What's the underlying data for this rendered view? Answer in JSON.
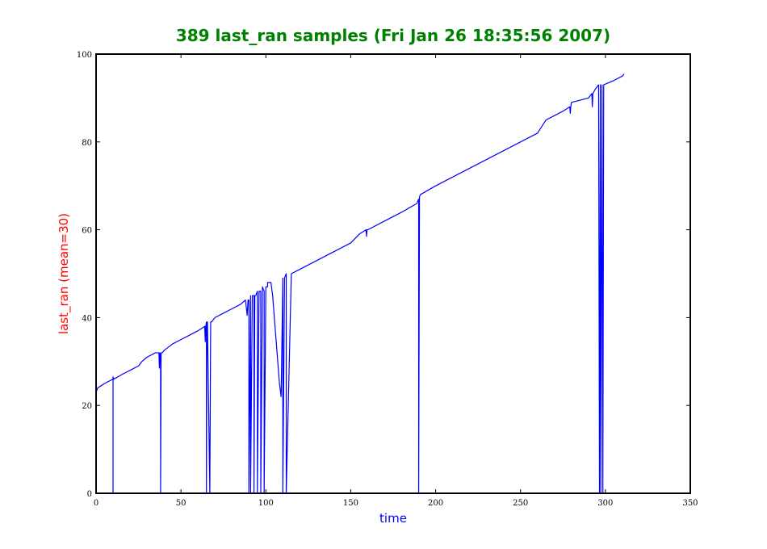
{
  "chart_data": {
    "type": "line",
    "title": "389 last_ran samples (Fri Jan 26 18:35:56 2007)",
    "xlabel": "time",
    "ylabel": "last_ran (mean=30)",
    "xlim": [
      0,
      350
    ],
    "ylim": [
      0,
      100
    ],
    "xticks": [
      0,
      50,
      100,
      150,
      200,
      250,
      300,
      350
    ],
    "yticks": [
      0,
      20,
      40,
      60,
      80,
      100
    ],
    "grid": false,
    "legend": "none",
    "colors": {
      "title": "#008000",
      "xlabel": "#0000ff",
      "ylabel": "#ff0000",
      "series": "#0000ff",
      "frame": "#000000"
    },
    "series": [
      {
        "x": [
          0,
          1,
          5,
          10,
          10,
          10,
          10.5,
          15,
          20,
          25,
          27,
          30,
          35,
          37,
          37.3,
          37.6,
          38,
          38,
          38.3,
          38.6,
          39,
          40,
          45,
          50,
          55,
          60,
          64,
          64.3,
          64.6,
          65,
          65,
          65.3,
          65.6,
          67,
          67.5,
          68,
          70,
          75,
          80,
          85,
          88,
          89,
          89.5,
          90,
          90,
          91,
          91,
          92,
          93,
          93,
          93.5,
          94,
          95,
          95,
          96,
          97,
          97,
          98,
          99,
          99,
          100,
          101,
          101,
          102,
          103,
          104,
          105,
          106,
          107,
          108,
          109,
          110,
          110,
          111,
          112,
          112,
          115,
          120,
          130,
          140,
          150,
          155,
          159,
          159.3,
          159.6,
          160,
          170,
          180,
          189,
          190,
          190,
          190.5,
          191,
          200,
          220,
          240,
          260,
          265,
          270,
          275,
          279,
          279.3,
          279.6,
          280,
          290,
          292,
          292.3,
          292.6,
          294,
          296,
          296.5,
          297,
          297,
          297.3,
          298,
          298,
          298.5,
          299,
          305,
          310,
          311
        ],
        "y": [
          23,
          24,
          25,
          26,
          0,
          26.5,
          26,
          27,
          28,
          29,
          30,
          31,
          32,
          32,
          28.5,
          32,
          31,
          0,
          32,
          32,
          32,
          32.5,
          34,
          35,
          36,
          37,
          38,
          34.5,
          38,
          39,
          0,
          39,
          39,
          0,
          39,
          39,
          40,
          41,
          42,
          43,
          44,
          40.5,
          44,
          44,
          0,
          45,
          0,
          45,
          45,
          0,
          45,
          45,
          46,
          0,
          46,
          46,
          0,
          47,
          46,
          0,
          47,
          47,
          48,
          48,
          48,
          45,
          40,
          35,
          30,
          25,
          22,
          49,
          0,
          49,
          50,
          0,
          50,
          51,
          53,
          55,
          57,
          59,
          60,
          58.5,
          60,
          60,
          62,
          64,
          66,
          67,
          0,
          67.5,
          68,
          70,
          74,
          78,
          82,
          85,
          86,
          87,
          88,
          86.5,
          88,
          89,
          90,
          91,
          88,
          91,
          92,
          93,
          0,
          93,
          93,
          0,
          93,
          93,
          0,
          93,
          94,
          95,
          95.5
        ]
      }
    ]
  }
}
